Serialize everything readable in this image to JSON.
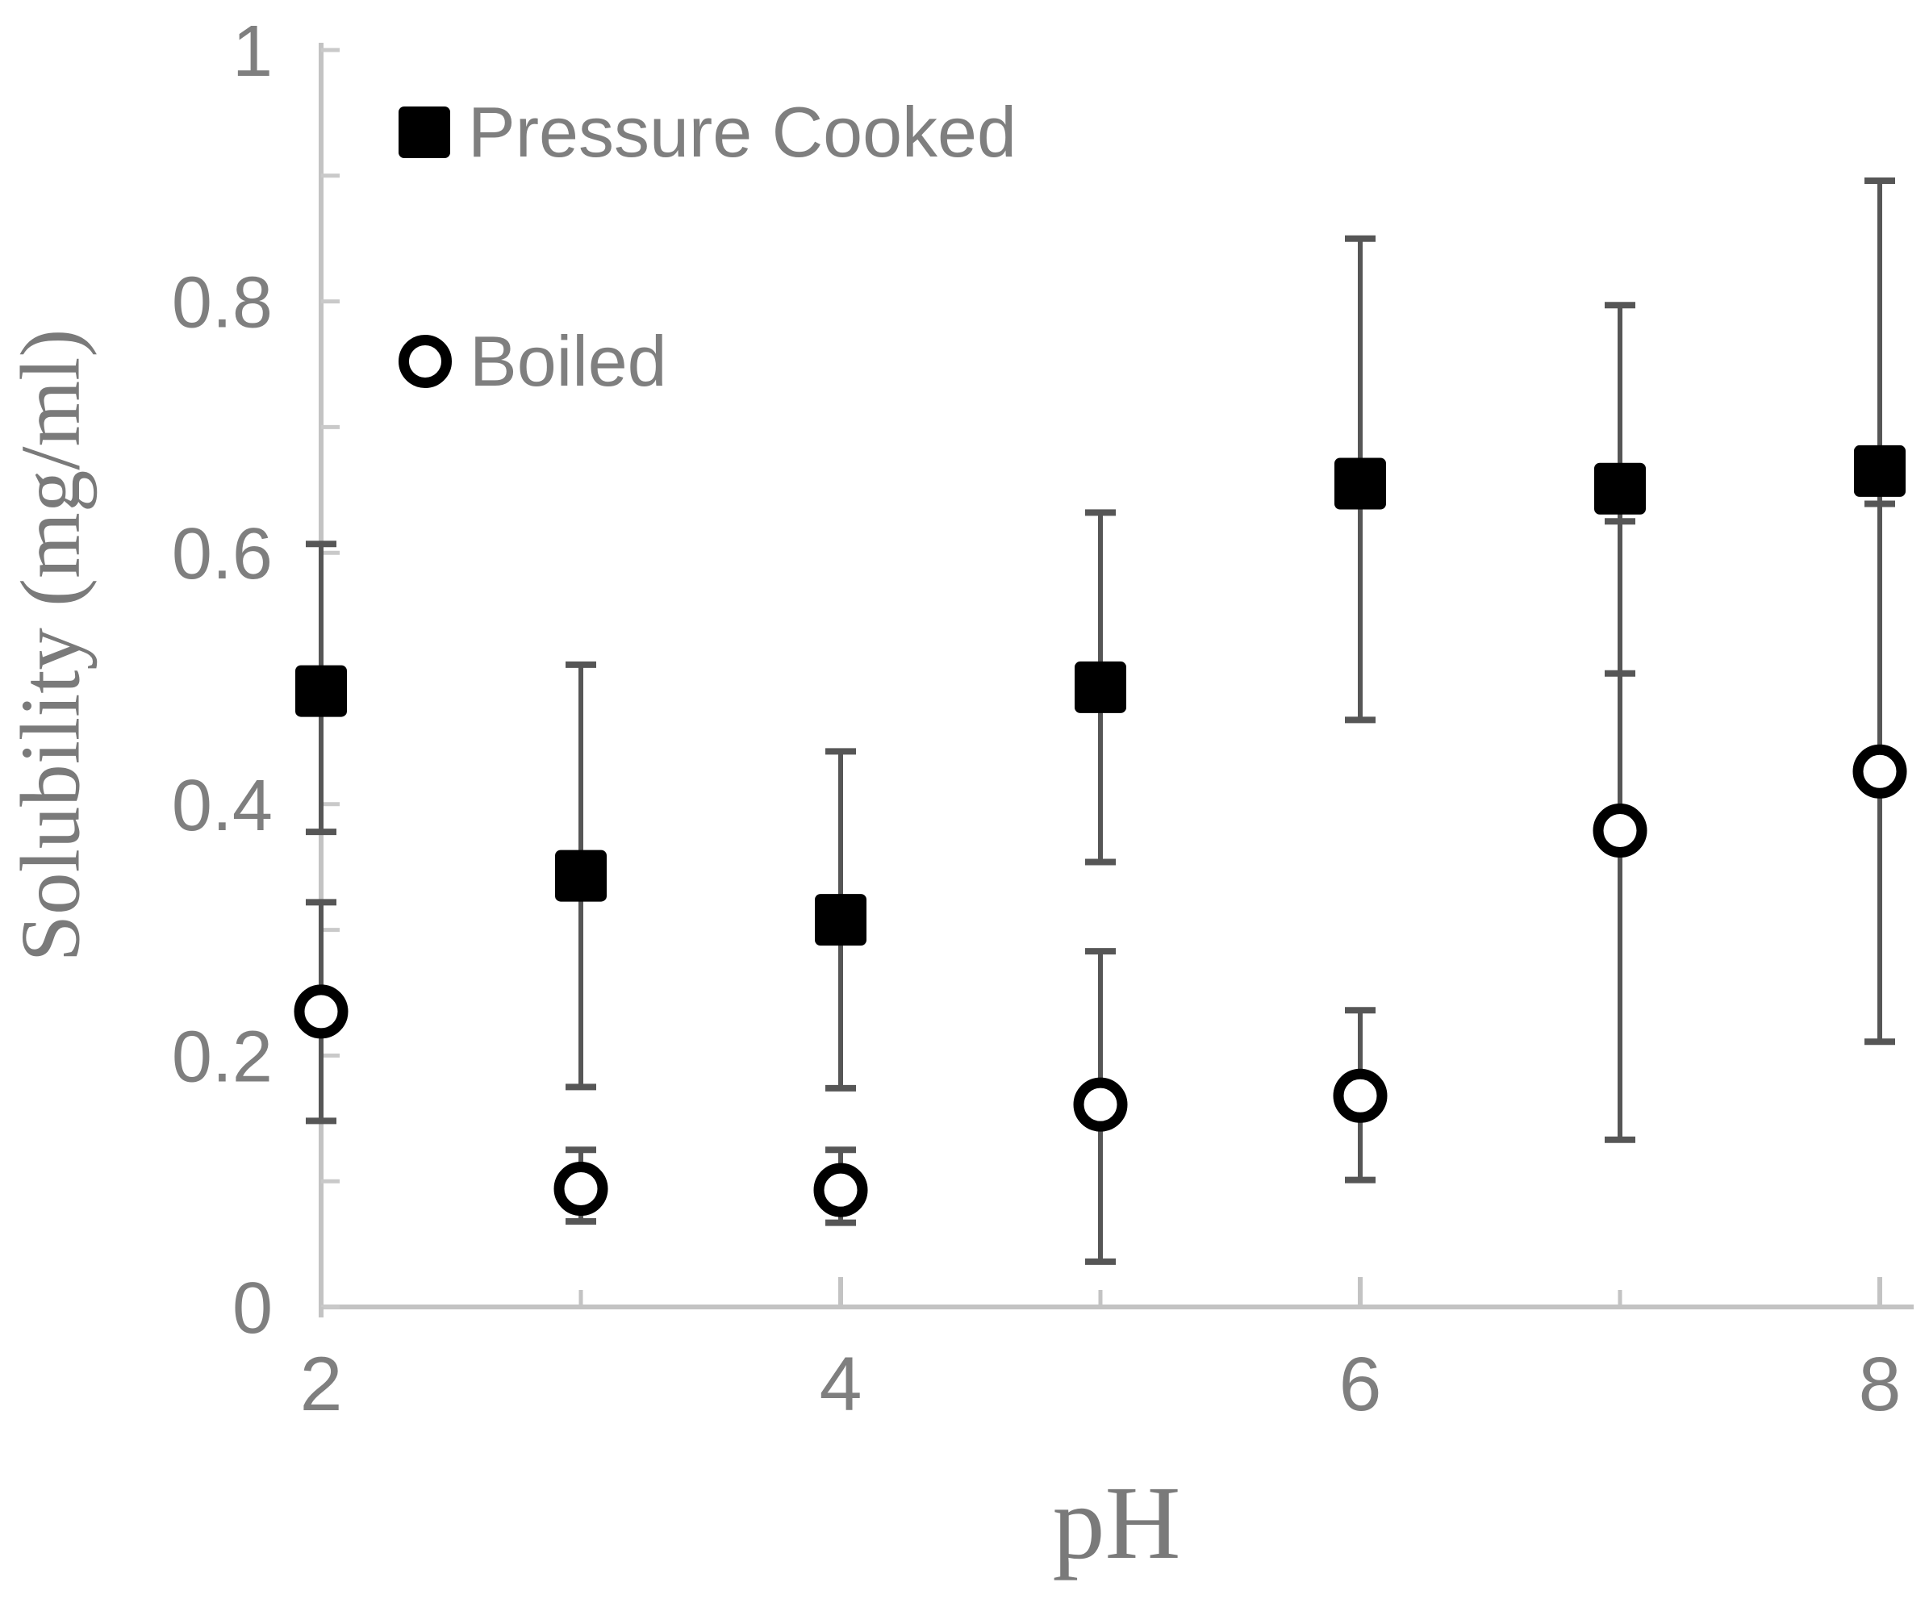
{
  "colors": {
    "background": "#ffffff",
    "axis": "#c3c3c3",
    "tick": "#c9c9c9",
    "text": "#7f7f7f",
    "axis_title_text": "#7a7a7a",
    "error_bar": "#565656",
    "marker": "#000000",
    "open_marker_fill": "#ffffff"
  },
  "chart_data": {
    "type": "scatter",
    "title": "",
    "xlabel": "pH",
    "ylabel": "Solubility (mg/ml)",
    "xlim": [
      2,
      8
    ],
    "ylim": [
      0,
      1
    ],
    "grid": false,
    "legend_position": "top-left-inside",
    "x_major_ticks": [
      2,
      4,
      6,
      8
    ],
    "x_minor_ticks": [
      3,
      5,
      7
    ],
    "x_tick_labels": [
      {
        "value": 2,
        "label": "2"
      },
      {
        "value": 4,
        "label": "4"
      },
      {
        "value": 6,
        "label": "6"
      },
      {
        "value": 8,
        "label": "8"
      }
    ],
    "y_ticks": [
      0,
      0.1,
      0.2,
      0.3,
      0.4,
      0.5,
      0.6,
      0.7,
      0.8,
      0.9,
      1
    ],
    "y_tick_labels": [
      {
        "value": 0,
        "label": "0"
      },
      {
        "value": 0.2,
        "label": "0.2"
      },
      {
        "value": 0.4,
        "label": "0.4"
      },
      {
        "value": 0.6,
        "label": "0.6"
      },
      {
        "value": 0.8,
        "label": "0.8"
      },
      {
        "value": 1,
        "label": "1"
      }
    ],
    "series": [
      {
        "name": "Pressure Cooked",
        "marker": "filled-square",
        "points": [
          {
            "x": 2,
            "y": 0.49,
            "lo": 0.378,
            "hi": 0.607
          },
          {
            "x": 3,
            "y": 0.343,
            "lo": 0.175,
            "hi": 0.511
          },
          {
            "x": 4,
            "y": 0.308,
            "lo": 0.174,
            "hi": 0.442
          },
          {
            "x": 5,
            "y": 0.493,
            "lo": 0.354,
            "hi": 0.632
          },
          {
            "x": 6,
            "y": 0.655,
            "lo": 0.467,
            "hi": 0.85
          },
          {
            "x": 7,
            "y": 0.651,
            "lo": 0.504,
            "hi": 0.797
          },
          {
            "x": 8,
            "y": 0.665,
            "lo": 0.434,
            "hi": 0.896
          }
        ]
      },
      {
        "name": "Boiled",
        "marker": "open-circle",
        "points": [
          {
            "x": 2,
            "y": 0.235,
            "lo": 0.148,
            "hi": 0.322
          },
          {
            "x": 3,
            "y": 0.094,
            "lo": 0.068,
            "hi": 0.125
          },
          {
            "x": 4,
            "y": 0.093,
            "lo": 0.067,
            "hi": 0.125
          },
          {
            "x": 5,
            "y": 0.161,
            "lo": 0.036,
            "hi": 0.283
          },
          {
            "x": 6,
            "y": 0.168,
            "lo": 0.101,
            "hi": 0.236
          },
          {
            "x": 7,
            "y": 0.379,
            "lo": 0.133,
            "hi": 0.625
          },
          {
            "x": 8,
            "y": 0.426,
            "lo": 0.211,
            "hi": 0.639
          }
        ]
      }
    ]
  }
}
